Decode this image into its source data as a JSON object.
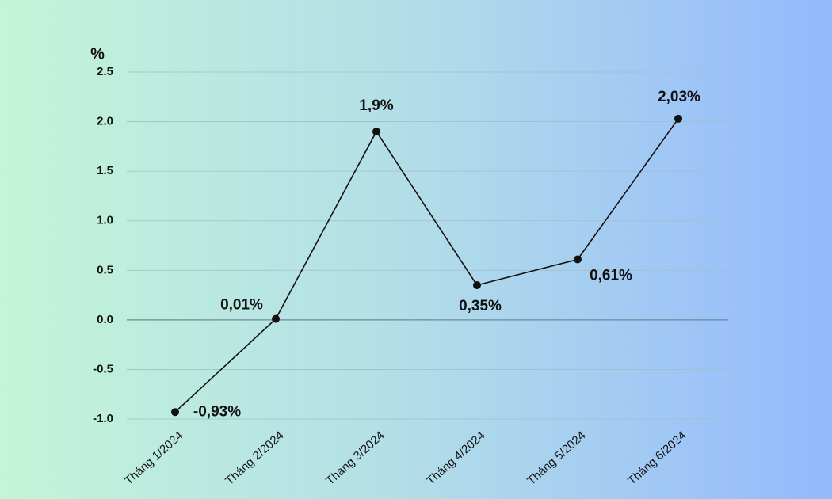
{
  "chart_data": {
    "type": "line",
    "y_label": "%",
    "categories": [
      "Tháng 1/2024",
      "Tháng 2/2024",
      "Tháng 3/2024",
      "Tháng 4/2024",
      "Tháng 5/2024",
      "Tháng 6/2024"
    ],
    "values": [
      -0.93,
      0.01,
      1.9,
      0.35,
      0.61,
      2.03
    ],
    "value_labels": [
      "-0,93%",
      "0,01%",
      "1,9%",
      "0,35%",
      "0,61%",
      "2,03%"
    ],
    "color": "#111111",
    "ylim": [
      -1,
      2.5
    ],
    "yticks": [
      {
        "value": -1,
        "label": "-1.0"
      },
      -0.5,
      {
        "value": 0,
        "label": "0.0"
      },
      0.5,
      {
        "value": 1,
        "label": "1.0"
      },
      1.5,
      {
        "value": 2,
        "label": "2.0"
      },
      2.5
    ],
    "grid": true
  }
}
